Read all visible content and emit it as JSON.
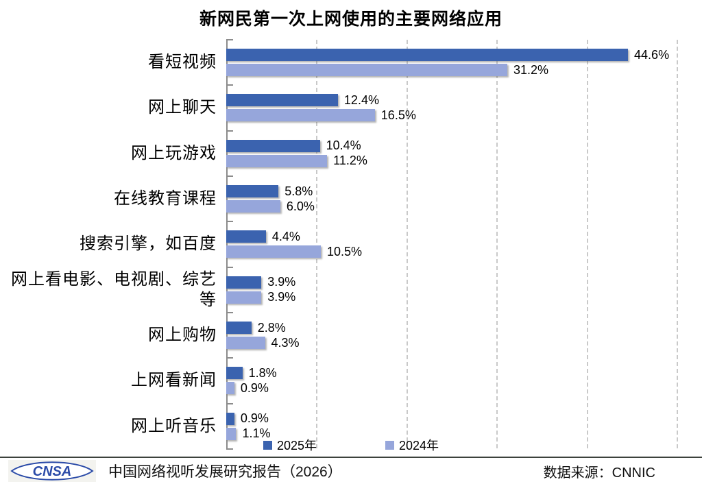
{
  "title": "新网民第一次上网使用的主要网络应用",
  "chart_data": {
    "type": "bar",
    "orientation": "horizontal",
    "title": "新网民第一次上网使用的主要网络应用",
    "categories": [
      "看短视频",
      "网上聊天",
      "网上玩游戏",
      "在线教育课程",
      "搜索引擎，如百度",
      "网上看电影、电视剧、综艺等",
      "网上购物",
      "上网看新闻",
      "网上听音乐"
    ],
    "series": [
      {
        "name": "2025年",
        "color": "#3B63AF",
        "values": [
          44.6,
          12.4,
          10.4,
          5.8,
          4.4,
          3.9,
          2.8,
          1.8,
          0.9
        ]
      },
      {
        "name": "2024年",
        "color": "#96A6DB",
        "values": [
          31.2,
          16.5,
          11.2,
          6.0,
          10.5,
          3.9,
          4.3,
          0.9,
          1.1
        ]
      }
    ],
    "value_suffix": "%",
    "xlim": [
      0,
      50
    ],
    "gridline_step": 10,
    "grid": "vertical-dashed",
    "legend_position": "bottom",
    "data_labels": "outside-end"
  },
  "footer": {
    "logo_text": "CNSA",
    "report_title": "中国网络视听发展研究报告（2026）",
    "source_label": "数据来源：CNNIC"
  }
}
